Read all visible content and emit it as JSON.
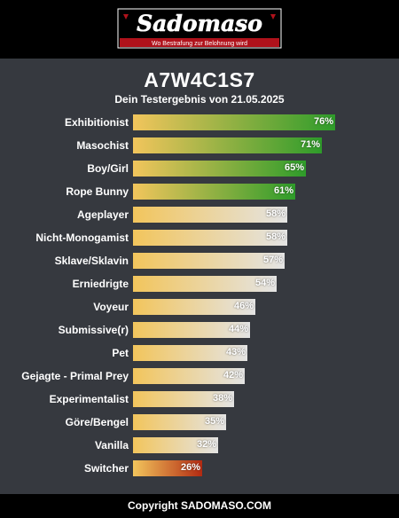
{
  "header": {
    "logo_text": "Sadomaso",
    "tagline": "Wo Bestrafung zur Belohnung wird"
  },
  "result": {
    "code": "A7W4C1S7",
    "subtitle": "Dein Testergebnis von 21.05.2025"
  },
  "colors": {
    "green_end": "#2e9c2a",
    "grey_end": "#e4e4e4",
    "red_end": "#b22a12",
    "gold_start": "#f2c55c"
  },
  "chart_data": {
    "type": "bar",
    "orientation": "horizontal",
    "xlim": [
      0,
      100
    ],
    "categories": [
      "Exhibitionist",
      "Masochist",
      "Boy/Girl",
      "Rope Bunny",
      "Ageplayer",
      "Nicht-Monogamist",
      "Sklave/Sklavin",
      "Erniedrigte",
      "Voyeur",
      "Submissive(r)",
      "Pet",
      "Gejagte - Primal Prey",
      "Experimentalist",
      "Göre/Bengel",
      "Vanilla",
      "Switcher"
    ],
    "values": [
      76,
      71,
      65,
      61,
      58,
      58,
      57,
      54,
      46,
      44,
      43,
      42,
      38,
      35,
      32,
      26
    ],
    "value_labels": [
      "76%",
      "71%",
      "65%",
      "61%",
      "58%",
      "58%",
      "57%",
      "54%",
      "46%",
      "44%",
      "43%",
      "42%",
      "38%",
      "35%",
      "32%",
      "26%"
    ],
    "tone": [
      "high",
      "high",
      "high",
      "high",
      "mid",
      "mid",
      "mid",
      "mid",
      "mid",
      "mid",
      "mid",
      "mid",
      "mid",
      "mid",
      "mid",
      "low"
    ]
  },
  "footer": {
    "copyright": "Copyright SADOMASO.COM"
  }
}
